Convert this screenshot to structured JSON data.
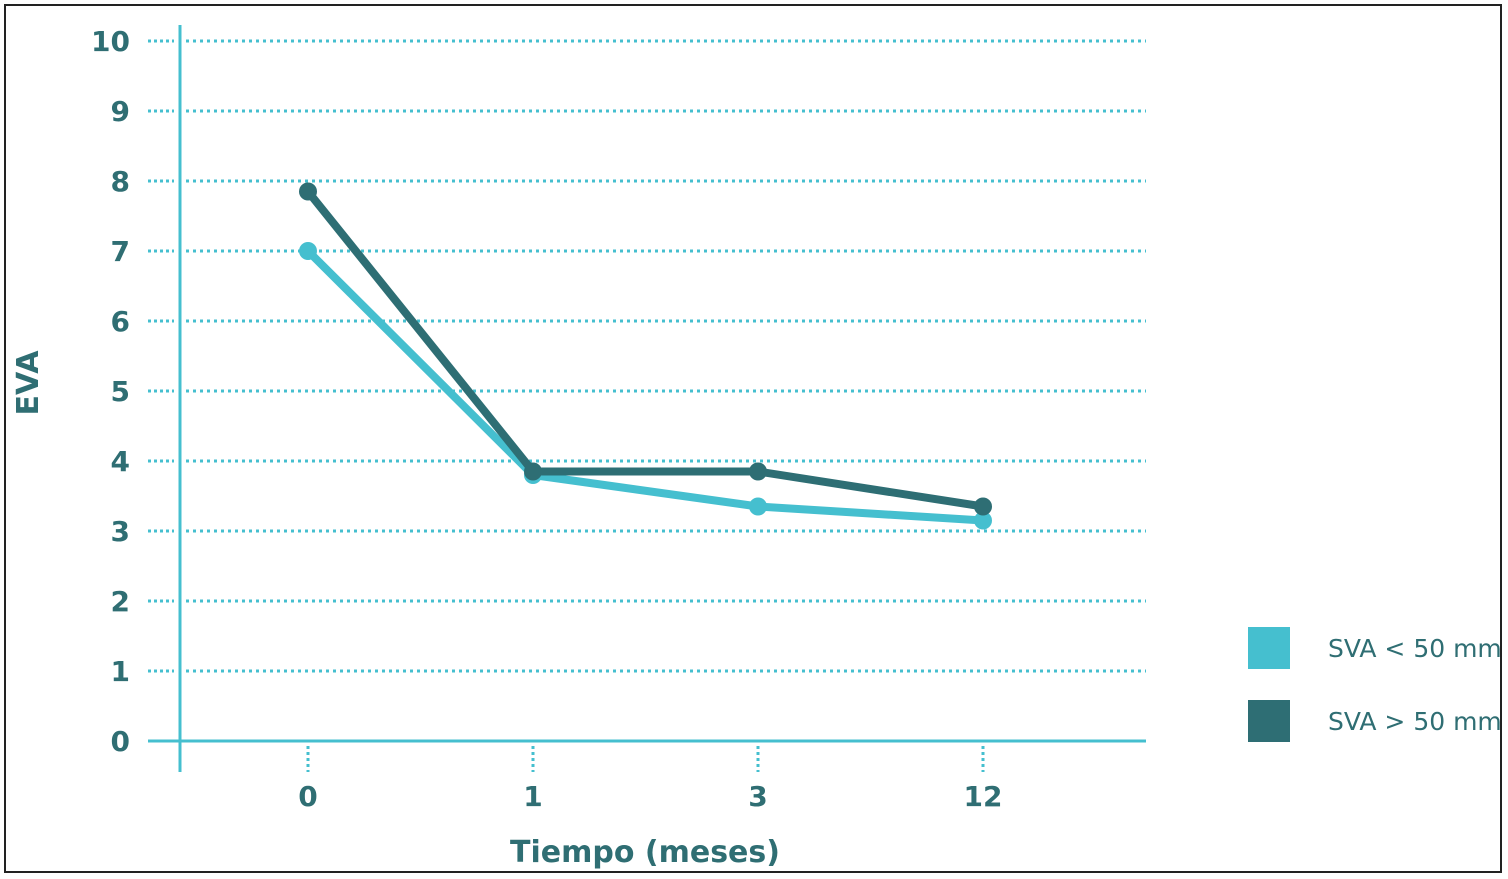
{
  "chart_data": {
    "type": "line",
    "xlabel": "Tiempo (meses)",
    "ylabel": "EVA",
    "categories": [
      "0",
      "1",
      "3",
      "12"
    ],
    "yticks": [
      "0",
      "1",
      "2",
      "3",
      "4",
      "5",
      "6",
      "7",
      "8",
      "9",
      "10"
    ],
    "ylim": [
      0,
      10
    ],
    "grid": true,
    "legend_position": "bottom-right",
    "series": [
      {
        "name": "SVA < 50 mm",
        "values": [
          7.0,
          3.8,
          3.35,
          3.15
        ],
        "color": "#45bfcf"
      },
      {
        "name": "SVA > 50 mm",
        "values": [
          7.85,
          3.85,
          3.85,
          3.35
        ],
        "color": "#2e6e74"
      }
    ],
    "axis_color": "#45bfcf",
    "text_color": "#2f6e73"
  }
}
